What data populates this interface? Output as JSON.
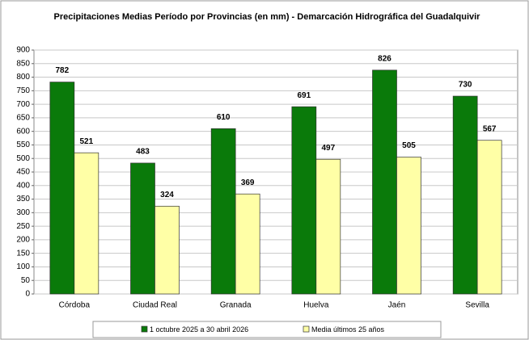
{
  "chart_data": {
    "type": "bar",
    "title": "Precipitaciones Medias Período por Provincias (en mm) - Demarcación Hidrográfica del Guadalquivir",
    "categories": [
      "Córdoba",
      "Ciudad Real",
      "Granada",
      "Huelva",
      "Jaén",
      "Sevilla"
    ],
    "series": [
      {
        "name": "1 octubre 2025 a 30 abril 2026",
        "color": "#0a7a0a",
        "values": [
          782,
          483,
          610,
          691,
          826,
          730
        ]
      },
      {
        "name": "Media últimos 25 años",
        "color": "#ffffa6",
        "values": [
          521,
          324,
          369,
          497,
          505,
          567
        ]
      }
    ],
    "ylim": [
      0,
      900
    ],
    "yticks": [
      0,
      50,
      100,
      150,
      200,
      250,
      300,
      350,
      400,
      450,
      500,
      550,
      600,
      650,
      700,
      750,
      800,
      850,
      900
    ],
    "grid": true,
    "legend": "bottom"
  }
}
